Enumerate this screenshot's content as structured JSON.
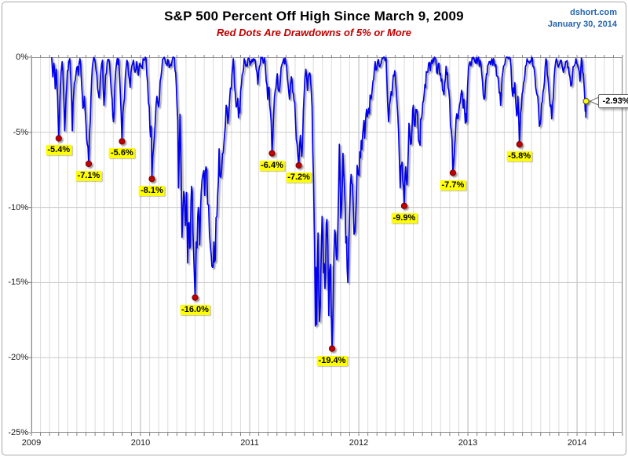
{
  "chart_data": {
    "type": "line",
    "title": "S&P 500 Percent Off High Since March 9, 2009",
    "subtitle": "Red Dots Are Drawdowns of 5% or More",
    "source": "dshort.com",
    "date": "January 30, 2014",
    "xlabel": "",
    "ylabel": "",
    "xlim": [
      2009.0,
      2014.4167
    ],
    "ylim": [
      -25,
      0
    ],
    "x_tick_labels": [
      "2009",
      "2010",
      "2011",
      "2012",
      "2013",
      "2014"
    ],
    "y_tick_labels": [
      "0%",
      "-5%",
      "-10%",
      "-15%",
      "-20%",
      "-25%"
    ],
    "grid": {
      "vertical": "monthly",
      "horizontal": "every 5%"
    },
    "legend": "none",
    "series_name": "S&P 500 percent off running high (daily close, %)",
    "points_format": "[decimal_year, drawdown_percent]",
    "points": [
      [
        2009.186,
        0
      ],
      [
        2009.196,
        -1.3
      ],
      [
        2009.206,
        -0.4
      ],
      [
        2009.218,
        -2.1
      ],
      [
        2009.228,
        -0.8
      ],
      [
        2009.24,
        -2.6
      ],
      [
        2009.25,
        -5.4
      ],
      [
        2009.262,
        -2.8
      ],
      [
        2009.272,
        -1.0
      ],
      [
        2009.282,
        -0.3
      ],
      [
        2009.295,
        -2.2
      ],
      [
        2009.305,
        -4.9
      ],
      [
        2009.318,
        -2.6
      ],
      [
        2009.33,
        -0.9
      ],
      [
        2009.342,
        -0.3
      ],
      [
        2009.352,
        -0.1
      ],
      [
        2009.362,
        -1.6
      ],
      [
        2009.375,
        -4.9
      ],
      [
        2009.388,
        -2.4
      ],
      [
        2009.4,
        -1.6
      ],
      [
        2009.415,
        -0.7
      ],
      [
        2009.43,
        -1.2
      ],
      [
        2009.445,
        -0.1
      ],
      [
        2009.46,
        -1.8
      ],
      [
        2009.472,
        -3.4
      ],
      [
        2009.485,
        -2.6
      ],
      [
        2009.5,
        -4.4
      ],
      [
        2009.512,
        -5.8
      ],
      [
        2009.525,
        -7.1
      ],
      [
        2009.54,
        -4.2
      ],
      [
        2009.552,
        -1.5
      ],
      [
        2009.565,
        -0.3
      ],
      [
        2009.578,
        -0.1
      ],
      [
        2009.6,
        -1.2
      ],
      [
        2009.62,
        -2.7
      ],
      [
        2009.635,
        -1.1
      ],
      [
        2009.652,
        -0.2
      ],
      [
        2009.665,
        -3.2
      ],
      [
        2009.68,
        -1.2
      ],
      [
        2009.695,
        -0.3
      ],
      [
        2009.71,
        -0.15
      ],
      [
        2009.725,
        -1.5
      ],
      [
        2009.74,
        -2.8
      ],
      [
        2009.752,
        -4.3
      ],
      [
        2009.765,
        -1.8
      ],
      [
        2009.78,
        -0.4
      ],
      [
        2009.8,
        -0.1
      ],
      [
        2009.815,
        -2.4
      ],
      [
        2009.83,
        -5.6
      ],
      [
        2009.845,
        -3.2
      ],
      [
        2009.86,
        -1.4
      ],
      [
        2009.875,
        -0.2
      ],
      [
        2009.89,
        -1.1
      ],
      [
        2009.905,
        -2.0
      ],
      [
        2009.92,
        -0.6
      ],
      [
        2009.935,
        -0.2
      ],
      [
        2009.95,
        -1.0
      ],
      [
        2009.965,
        -0.3
      ],
      [
        2009.98,
        -1.2
      ],
      [
        2009.995,
        -0.4
      ],
      [
        2010.01,
        -0.6
      ],
      [
        2010.03,
        -0.2
      ],
      [
        2010.05,
        -0.05
      ],
      [
        2010.065,
        -1.7
      ],
      [
        2010.08,
        -3.3
      ],
      [
        2010.092,
        -5.3
      ],
      [
        2010.098,
        -4.6
      ],
      [
        2010.104,
        -8.1
      ],
      [
        2010.12,
        -6.0
      ],
      [
        2010.135,
        -4.3
      ],
      [
        2010.15,
        -2.6
      ],
      [
        2010.165,
        -3.3
      ],
      [
        2010.18,
        -1.6
      ],
      [
        2010.195,
        -0.8
      ],
      [
        2010.21,
        -0.1
      ],
      [
        2010.23,
        -0.4
      ],
      [
        2010.25,
        -0.15
      ],
      [
        2010.27,
        -0.6
      ],
      [
        2010.29,
        -0.2
      ],
      [
        2010.31,
        -0.05
      ],
      [
        2010.328,
        -1.9
      ],
      [
        2010.342,
        -4.2
      ],
      [
        2010.348,
        -8.7
      ],
      [
        2010.355,
        -6.2
      ],
      [
        2010.362,
        -3.8
      ],
      [
        2010.372,
        -7.5
      ],
      [
        2010.38,
        -12.0
      ],
      [
        2010.39,
        -9.8
      ],
      [
        2010.402,
        -9.3
      ],
      [
        2010.412,
        -11.2
      ],
      [
        2010.422,
        -9.0
      ],
      [
        2010.432,
        -13.7
      ],
      [
        2010.445,
        -11.0
      ],
      [
        2010.456,
        -12.6
      ],
      [
        2010.468,
        -8.6
      ],
      [
        2010.48,
        -11.5
      ],
      [
        2010.49,
        -13.8
      ],
      [
        2010.5,
        -16.0
      ],
      [
        2010.512,
        -12.3
      ],
      [
        2010.53,
        -10.0
      ],
      [
        2010.542,
        -12.5
      ],
      [
        2010.556,
        -9.0
      ],
      [
        2010.572,
        -7.8
      ],
      [
        2010.588,
        -9.2
      ],
      [
        2010.6,
        -7.3
      ],
      [
        2010.615,
        -9.8
      ],
      [
        2010.632,
        -11.8
      ],
      [
        2010.648,
        -13.2
      ],
      [
        2010.66,
        -14.0
      ],
      [
        2010.672,
        -12.3
      ],
      [
        2010.684,
        -13.5
      ],
      [
        2010.7,
        -10.6
      ],
      [
        2010.72,
        -6.1
      ],
      [
        2010.735,
        -8.0
      ],
      [
        2010.752,
        -6.4
      ],
      [
        2010.77,
        -5.2
      ],
      [
        2010.785,
        -3.2
      ],
      [
        2010.8,
        -4.4
      ],
      [
        2010.815,
        -3.0
      ],
      [
        2010.832,
        -2.1
      ],
      [
        2010.85,
        -0.1
      ],
      [
        2010.868,
        -2.4
      ],
      [
        2010.885,
        -3.2
      ],
      [
        2010.91,
        -3.7
      ],
      [
        2010.925,
        -1.8
      ],
      [
        2010.95,
        -0.1
      ],
      [
        2010.965,
        -0.6
      ],
      [
        2010.985,
        -0.1
      ],
      [
        2011.01,
        -0.3
      ],
      [
        2011.035,
        -0.1
      ],
      [
        2011.06,
        -0.8
      ],
      [
        2011.075,
        -1.8
      ],
      [
        2011.09,
        -0.6
      ],
      [
        2011.11,
        -0.1
      ],
      [
        2011.125,
        -0.4
      ],
      [
        2011.137,
        -0.05
      ],
      [
        2011.152,
        -1.6
      ],
      [
        2011.165,
        -2.8
      ],
      [
        2011.178,
        -2.0
      ],
      [
        2011.19,
        -3.6
      ],
      [
        2011.205,
        -6.4
      ],
      [
        2011.22,
        -3.8
      ],
      [
        2011.235,
        -2.2
      ],
      [
        2011.253,
        -1.1
      ],
      [
        2011.27,
        -2.3
      ],
      [
        2011.288,
        -0.7
      ],
      [
        2011.305,
        -0.3
      ],
      [
        2011.325,
        -0.05
      ],
      [
        2011.345,
        -1.3
      ],
      [
        2011.365,
        -2.8
      ],
      [
        2011.382,
        -1.3
      ],
      [
        2011.4,
        -2.4
      ],
      [
        2011.42,
        -4.2
      ],
      [
        2011.435,
        -5.8
      ],
      [
        2011.45,
        -7.2
      ],
      [
        2011.465,
        -5.2
      ],
      [
        2011.478,
        -6.6
      ],
      [
        2011.492,
        -3.6
      ],
      [
        2011.515,
        -0.8
      ],
      [
        2011.53,
        -2.2
      ],
      [
        2011.545,
        -1.1
      ],
      [
        2011.558,
        -1.5
      ],
      [
        2011.572,
        -3.3
      ],
      [
        2011.585,
        -8.0
      ],
      [
        2011.595,
        -12.5
      ],
      [
        2011.602,
        -17.9
      ],
      [
        2011.608,
        -14.0
      ],
      [
        2011.614,
        -17.8
      ],
      [
        2011.627,
        -11.7
      ],
      [
        2011.64,
        -17.6
      ],
      [
        2011.655,
        -13.5
      ],
      [
        2011.664,
        -10.6
      ],
      [
        2011.69,
        -15.4
      ],
      [
        2011.708,
        -10.8
      ],
      [
        2011.725,
        -17.2
      ],
      [
        2011.74,
        -13.8
      ],
      [
        2011.755,
        -19.4
      ],
      [
        2011.765,
        -16.5
      ],
      [
        2011.78,
        -11.5
      ],
      [
        2011.8,
        -13.5
      ],
      [
        2011.822,
        -5.8
      ],
      [
        2011.835,
        -10.7
      ],
      [
        2011.855,
        -6.4
      ],
      [
        2011.875,
        -9.8
      ],
      [
        2011.9,
        -15.0
      ],
      [
        2011.917,
        -10.2
      ],
      [
        2011.93,
        -7.8
      ],
      [
        2011.948,
        -9.6
      ],
      [
        2011.965,
        -11.6
      ],
      [
        2011.985,
        -7.2
      ],
      [
        2011.995,
        -7.8
      ],
      [
        2012.01,
        -6.3
      ],
      [
        2012.035,
        -5.2
      ],
      [
        2012.06,
        -4.5
      ],
      [
        2012.085,
        -3.7
      ],
      [
        2012.11,
        -2.8
      ],
      [
        2012.13,
        -1.6
      ],
      [
        2012.15,
        -0.3
      ],
      [
        2012.165,
        -0.8
      ],
      [
        2012.18,
        -0.15
      ],
      [
        2012.2,
        -0.5
      ],
      [
        2012.22,
        -0.1
      ],
      [
        2012.25,
        -0.05
      ],
      [
        2012.273,
        -4.3
      ],
      [
        2012.29,
        -2.8
      ],
      [
        2012.31,
        -1.8
      ],
      [
        2012.33,
        -0.9
      ],
      [
        2012.35,
        -3.0
      ],
      [
        2012.365,
        -5.0
      ],
      [
        2012.38,
        -8.7
      ],
      [
        2012.392,
        -7.2
      ],
      [
        2012.403,
        -8.2
      ],
      [
        2012.416,
        -9.9
      ],
      [
        2012.43,
        -7.3
      ],
      [
        2012.442,
        -8.5
      ],
      [
        2012.46,
        -4.4
      ],
      [
        2012.475,
        -5.8
      ],
      [
        2012.5,
        -3.2
      ],
      [
        2012.515,
        -4.6
      ],
      [
        2012.532,
        -3.5
      ],
      [
        2012.555,
        -5.7
      ],
      [
        2012.58,
        -3.8
      ],
      [
        2012.6,
        -2.4
      ],
      [
        2012.625,
        -1.0
      ],
      [
        2012.64,
        -0.4
      ],
      [
        2012.655,
        -0.9
      ],
      [
        2012.68,
        -0.1
      ],
      [
        2012.7,
        -0.05
      ],
      [
        2012.72,
        -1.1
      ],
      [
        2012.735,
        -0.4
      ],
      [
        2012.755,
        -1.6
      ],
      [
        2012.78,
        -2.5
      ],
      [
        2012.8,
        -0.6
      ],
      [
        2012.825,
        -2.2
      ],
      [
        2012.848,
        -4.9
      ],
      [
        2012.862,
        -7.7
      ],
      [
        2012.885,
        -5.2
      ],
      [
        2012.905,
        -4.1
      ],
      [
        2012.93,
        -3.0
      ],
      [
        2012.95,
        -2.5
      ],
      [
        2012.97,
        -3.6
      ],
      [
        2012.988,
        -4.3
      ],
      [
        2013.005,
        -0.8
      ],
      [
        2013.02,
        -0.3
      ],
      [
        2013.045,
        -0.1
      ],
      [
        2013.07,
        -0.4
      ],
      [
        2013.09,
        -0.1
      ],
      [
        2013.12,
        -0.5
      ],
      [
        2013.148,
        -2.8
      ],
      [
        2013.17,
        -1.1
      ],
      [
        2013.195,
        -0.3
      ],
      [
        2013.22,
        -0.1
      ],
      [
        2013.25,
        -0.6
      ],
      [
        2013.275,
        -1.3
      ],
      [
        2013.3,
        -3.2
      ],
      [
        2013.32,
        -1.0
      ],
      [
        2013.345,
        -0.15
      ],
      [
        2013.37,
        -0.1
      ],
      [
        2013.387,
        -0.05
      ],
      [
        2013.41,
        -2.6
      ],
      [
        2013.43,
        -1.7
      ],
      [
        2013.447,
        -3.9
      ],
      [
        2013.458,
        -2.6
      ],
      [
        2013.472,
        -5.8
      ],
      [
        2013.49,
        -3.4
      ],
      [
        2013.51,
        -1.7
      ],
      [
        2013.528,
        -0.6
      ],
      [
        2013.542,
        -0.1
      ],
      [
        2013.565,
        -0.4
      ],
      [
        2013.59,
        -0.05
      ],
      [
        2013.615,
        -1.3
      ],
      [
        2013.64,
        -2.6
      ],
      [
        2013.655,
        -4.6
      ],
      [
        2013.675,
        -3.1
      ],
      [
        2013.695,
        -2.1
      ],
      [
        2013.715,
        -0.1
      ],
      [
        2013.74,
        -2.0
      ],
      [
        2013.768,
        -4.1
      ],
      [
        2013.79,
        -1.4
      ],
      [
        2013.81,
        -0.1
      ],
      [
        2013.835,
        -0.5
      ],
      [
        2013.855,
        -0.2
      ],
      [
        2013.875,
        -1.0
      ],
      [
        2013.895,
        -0.3
      ],
      [
        2013.915,
        -0.7
      ],
      [
        2013.935,
        -1.3
      ],
      [
        2013.952,
        -1.8
      ],
      [
        2013.97,
        -0.6
      ],
      [
        2013.99,
        -0.1
      ],
      [
        2014.012,
        -0.7
      ],
      [
        2014.027,
        -1.6
      ],
      [
        2014.04,
        -0.05
      ],
      [
        2014.058,
        -1.1
      ],
      [
        2014.068,
        -2.3
      ],
      [
        2014.075,
        -3.6
      ],
      [
        2014.078,
        -3.1
      ],
      [
        2014.081,
        -4.0
      ],
      [
        2014.083,
        -2.93
      ]
    ],
    "drawdown_dots": [
      {
        "t": 2009.25,
        "v": -5.4,
        "label": "-5.4%"
      },
      {
        "t": 2009.525,
        "v": -7.1,
        "label": "-7.1%"
      },
      {
        "t": 2009.83,
        "v": -5.6,
        "label": "-5.6%"
      },
      {
        "t": 2010.104,
        "v": -8.1,
        "label": "-8.1%"
      },
      {
        "t": 2010.5,
        "v": -16.0,
        "label": "-16.0%"
      },
      {
        "t": 2011.205,
        "v": -6.4,
        "label": "-6.4%"
      },
      {
        "t": 2011.45,
        "v": -7.2,
        "label": "-7.2%"
      },
      {
        "t": 2011.755,
        "v": -19.4,
        "label": "-19.4%"
      },
      {
        "t": 2012.416,
        "v": -9.9,
        "label": "-9.9%"
      },
      {
        "t": 2012.862,
        "v": -7.7,
        "label": "-7.7%"
      },
      {
        "t": 2013.472,
        "v": -5.8,
        "label": "-5.8%"
      }
    ],
    "latest": {
      "t": 2014.083,
      "v": -2.93,
      "label": "-2.93%"
    }
  },
  "colors": {
    "line": "#0000EE",
    "grid_month": "#DCDCDC",
    "grid_year": "#B5B5B5",
    "grid_horizontal": "#C9C9C9",
    "plot_border": "#8C8C8C",
    "tick": "#808080",
    "dot_red_fill": "#C00000",
    "dot_red_border": "#7A0000",
    "dot_latest_fill": "#FFFF00",
    "dot_latest_border": "#404040",
    "label_bg": "#FFFF00",
    "label_text": "#000000",
    "subtitle_red": "#C00000",
    "source_blue": "#2565AE",
    "callout_border": "#666666"
  }
}
